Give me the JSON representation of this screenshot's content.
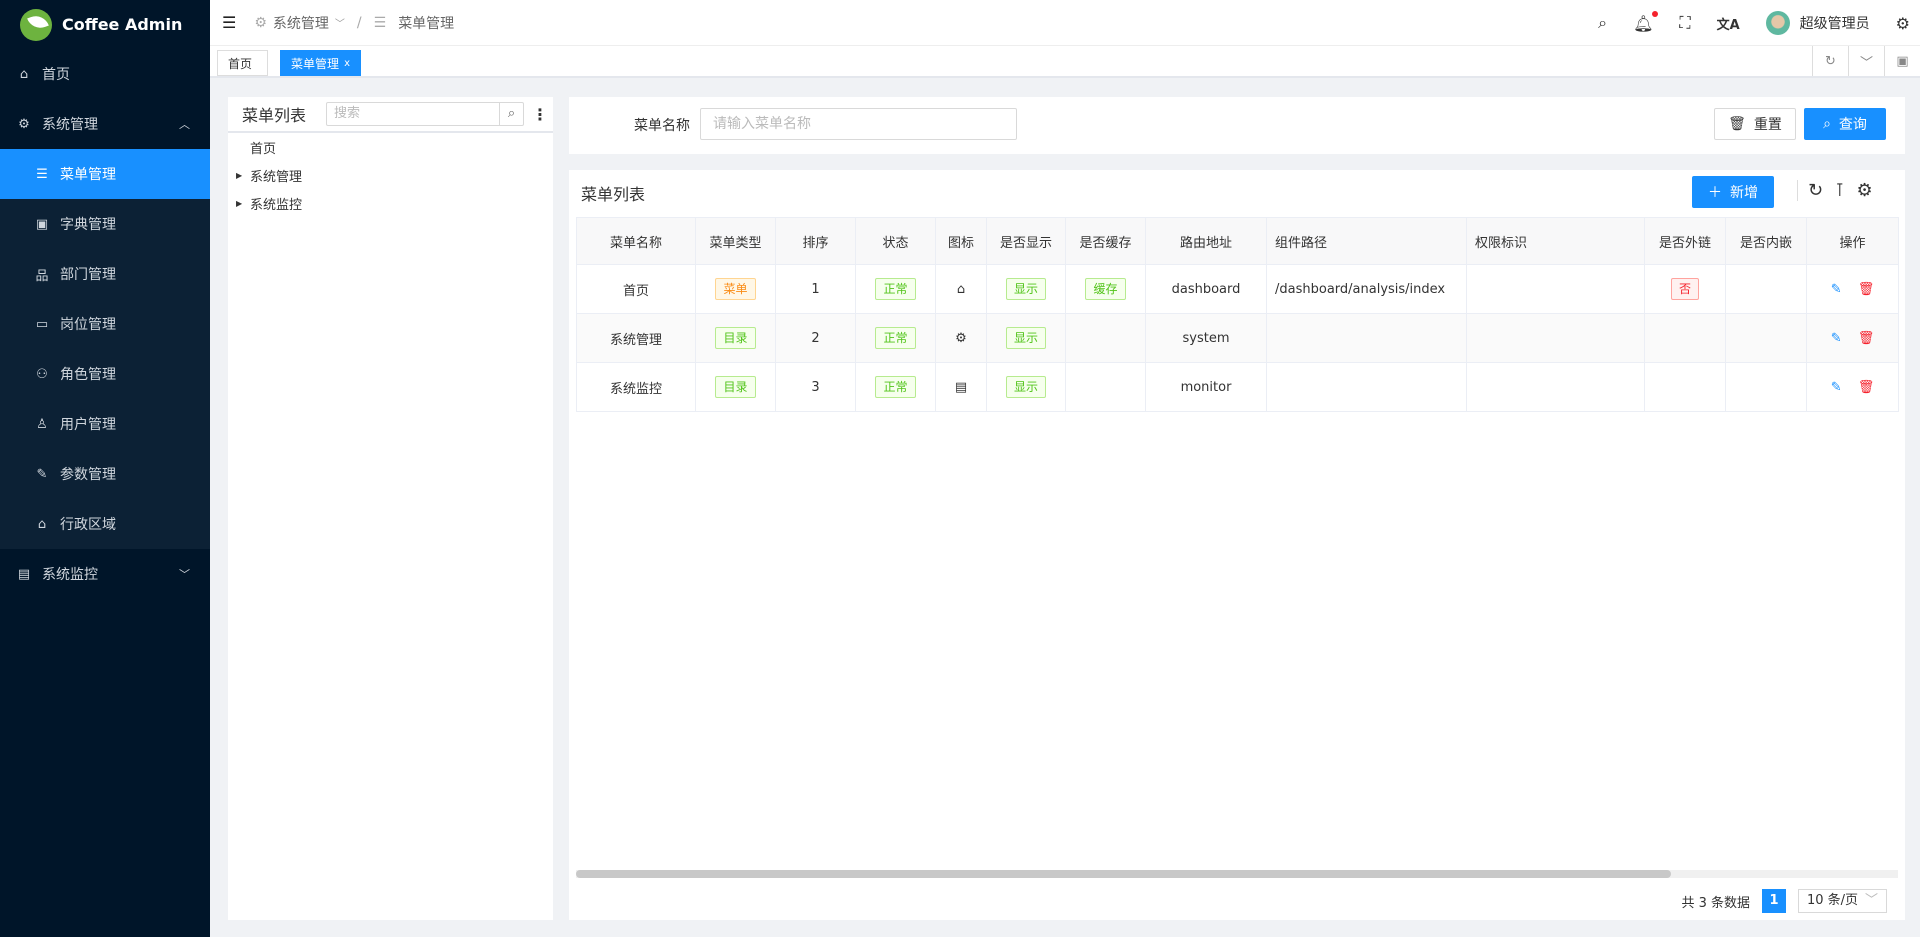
{
  "app": {
    "title": "Coffee Admin"
  },
  "sidebar": {
    "items": [
      {
        "label": "首页",
        "icon": "home-icon"
      },
      {
        "label": "系统管理",
        "icon": "gear-icon",
        "expanded": true,
        "children": [
          {
            "label": "菜单管理",
            "icon": "list-icon",
            "active": true
          },
          {
            "label": "字典管理",
            "icon": "dictionary-icon"
          },
          {
            "label": "部门管理",
            "icon": "org-chart-icon"
          },
          {
            "label": "岗位管理",
            "icon": "id-card-icon"
          },
          {
            "label": "角色管理",
            "icon": "users-icon"
          },
          {
            "label": "用户管理",
            "icon": "user-icon"
          },
          {
            "label": "参数管理",
            "icon": "wrench-icon"
          },
          {
            "label": "行政区域",
            "icon": "bank-icon"
          }
        ]
      },
      {
        "label": "系统监控",
        "icon": "monitor-icon",
        "expanded": false
      }
    ]
  },
  "header": {
    "breadcrumb": [
      "系统管理",
      "菜单管理"
    ],
    "user": "超级管理员"
  },
  "tabs": [
    {
      "label": "首页"
    },
    {
      "label": "菜单管理",
      "active": true,
      "close": "x"
    }
  ],
  "tree": {
    "title": "菜单列表",
    "search_placeholder": "搜索",
    "nodes": [
      "首页",
      "系统管理",
      "系统监控"
    ]
  },
  "search": {
    "label": "菜单名称",
    "placeholder": "请输入菜单名称",
    "reset": "重置",
    "query": "查询"
  },
  "table": {
    "title": "菜单列表",
    "add": "新增",
    "columns": [
      "菜单名称",
      "菜单类型",
      "排序",
      "状态",
      "图标",
      "是否显示",
      "是否缓存",
      "路由地址",
      "组件路径",
      "权限标识",
      "是否外链",
      "是否内嵌",
      "操作"
    ],
    "rows": [
      {
        "name": "首页",
        "type": "菜单",
        "type_color": "orange",
        "sort": "1",
        "status": "正常",
        "icon": "home-icon",
        "visible": "显示",
        "cache": "缓存",
        "route": "dashboard",
        "component": "/dashboard/analysis/index",
        "perm": "",
        "external": "否",
        "embed": ""
      },
      {
        "name": "系统管理",
        "type": "目录",
        "type_color": "green",
        "sort": "2",
        "status": "正常",
        "icon": "gear-icon",
        "visible": "显示",
        "cache": "",
        "route": "system",
        "component": "",
        "perm": "",
        "external": "",
        "embed": ""
      },
      {
        "name": "系统监控",
        "type": "目录",
        "type_color": "green",
        "sort": "3",
        "status": "正常",
        "icon": "monitor-icon",
        "visible": "显示",
        "cache": "",
        "route": "monitor",
        "component": "",
        "perm": "",
        "external": "",
        "embed": ""
      }
    ]
  },
  "pagination": {
    "total_text": "共 3 条数据",
    "current": "1",
    "page_size": "10 条/页"
  },
  "colors": {
    "primary": "#1890ff",
    "sidebar": "#001529",
    "submenu": "#0c2135"
  }
}
